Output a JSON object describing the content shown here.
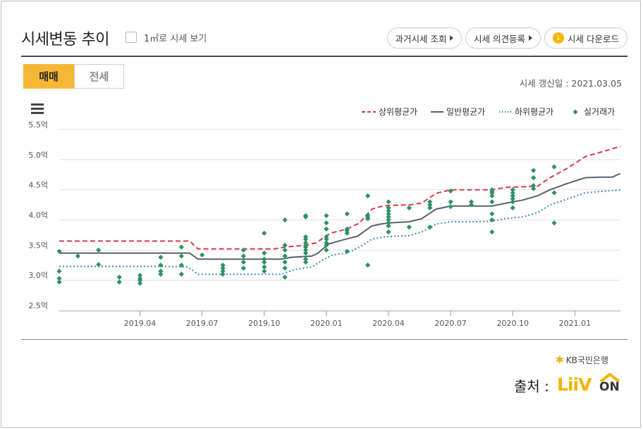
{
  "header": {
    "title": "시세변동 추이",
    "area_toggle_label": "1㎡로 시세 보기",
    "buttons": [
      "과거시세 조회",
      "시세 의견등록",
      "시세 다운로드"
    ]
  },
  "tabs": [
    "매매",
    "전세"
  ],
  "active_tab": "매매",
  "update_date": "시세 갱신일 : 2021.03.05",
  "footer": {
    "bank": "KB국민은행",
    "source_label": "출처 :",
    "logo_text": "LiiV ON"
  },
  "colors": {
    "upper": "#d93a49",
    "general": "#58616b",
    "lower": "#3c86c6",
    "actual": "#2e9163",
    "tab_active": "#f4b735"
  },
  "chart_data": {
    "type": "line",
    "y_unit": "억",
    "ylim": [
      2.5,
      5.5
    ],
    "y_ticks": [
      2.5,
      3.0,
      3.5,
      4.0,
      4.5,
      5.0,
      5.5
    ],
    "y_tick_labels": [
      "2.5억",
      "3.0억",
      "3.5억",
      "4.0억",
      "4.5억",
      "5.0억",
      "5.5억"
    ],
    "x_tick_labels": [
      "2019.04",
      "2019.07",
      "2019.10",
      "2020.01",
      "2020.04",
      "2020.07",
      "2020.10",
      "2021.01"
    ],
    "x_tick_months": [
      3,
      6,
      9,
      12,
      15,
      18,
      21,
      24
    ],
    "x_range_months": [
      -0.9,
      26.2
    ],
    "grid": true,
    "legend_position": "top-right",
    "series": [
      {
        "name": "상위평균가",
        "style": "dashed",
        "color": "#d93a49",
        "points": [
          [
            -0.9,
            3.65
          ],
          [
            1.0,
            3.65
          ],
          [
            1.8,
            3.65
          ],
          [
            3.0,
            3.65
          ],
          [
            4.2,
            3.65
          ],
          [
            5.4,
            3.65
          ],
          [
            5.8,
            3.52
          ],
          [
            7.0,
            3.52
          ],
          [
            8.0,
            3.52
          ],
          [
            9.0,
            3.52
          ],
          [
            9.5,
            3.52
          ],
          [
            10.0,
            3.55
          ],
          [
            11.0,
            3.58
          ],
          [
            11.5,
            3.62
          ],
          [
            12.2,
            3.78
          ],
          [
            13.0,
            3.85
          ],
          [
            13.6,
            3.95
          ],
          [
            14.2,
            4.18
          ],
          [
            14.6,
            4.22
          ],
          [
            15.0,
            4.24
          ],
          [
            16.0,
            4.25
          ],
          [
            16.6,
            4.28
          ],
          [
            17.3,
            4.44
          ],
          [
            18.0,
            4.5
          ],
          [
            19.0,
            4.5
          ],
          [
            20.0,
            4.5
          ],
          [
            20.7,
            4.54
          ],
          [
            21.5,
            4.55
          ],
          [
            22.2,
            4.56
          ],
          [
            22.8,
            4.7
          ],
          [
            23.6,
            4.85
          ],
          [
            24.5,
            5.05
          ],
          [
            25.2,
            5.12
          ],
          [
            26.2,
            5.22
          ]
        ]
      },
      {
        "name": "일반평균가",
        "style": "solid",
        "color": "#58616b",
        "points": [
          [
            -0.9,
            3.45
          ],
          [
            1.0,
            3.45
          ],
          [
            2.0,
            3.45
          ],
          [
            4.2,
            3.45
          ],
          [
            5.4,
            3.45
          ],
          [
            5.8,
            3.35
          ],
          [
            7.0,
            3.35
          ],
          [
            8.0,
            3.35
          ],
          [
            9.0,
            3.35
          ],
          [
            9.8,
            3.35
          ],
          [
            10.3,
            3.38
          ],
          [
            11.3,
            3.4
          ],
          [
            11.6,
            3.45
          ],
          [
            12.1,
            3.6
          ],
          [
            12.8,
            3.67
          ],
          [
            13.5,
            3.73
          ],
          [
            14.2,
            3.9
          ],
          [
            14.6,
            3.93
          ],
          [
            15.0,
            3.95
          ],
          [
            16.0,
            3.97
          ],
          [
            16.6,
            4.02
          ],
          [
            17.3,
            4.18
          ],
          [
            18.0,
            4.23
          ],
          [
            19.0,
            4.23
          ],
          [
            20.0,
            4.23
          ],
          [
            20.7,
            4.28
          ],
          [
            21.5,
            4.33
          ],
          [
            22.2,
            4.4
          ],
          [
            22.8,
            4.5
          ],
          [
            23.6,
            4.6
          ],
          [
            24.5,
            4.7
          ],
          [
            25.2,
            4.71
          ],
          [
            25.8,
            4.71
          ],
          [
            26.2,
            4.77
          ]
        ]
      },
      {
        "name": "하위평균가",
        "style": "dotted",
        "color": "#3c86c6",
        "points": [
          [
            -0.9,
            3.23
          ],
          [
            1.0,
            3.23
          ],
          [
            2.0,
            3.23
          ],
          [
            4.2,
            3.23
          ],
          [
            5.3,
            3.22
          ],
          [
            5.8,
            3.1
          ],
          [
            7.0,
            3.1
          ],
          [
            8.0,
            3.1
          ],
          [
            9.0,
            3.1
          ],
          [
            9.8,
            3.1
          ],
          [
            10.5,
            3.18
          ],
          [
            11.3,
            3.22
          ],
          [
            11.8,
            3.33
          ],
          [
            12.3,
            3.42
          ],
          [
            13.0,
            3.45
          ],
          [
            13.6,
            3.55
          ],
          [
            14.2,
            3.68
          ],
          [
            14.8,
            3.72
          ],
          [
            15.3,
            3.73
          ],
          [
            16.0,
            3.74
          ],
          [
            16.6,
            3.8
          ],
          [
            17.3,
            3.93
          ],
          [
            18.0,
            3.97
          ],
          [
            19.0,
            3.97
          ],
          [
            20.0,
            3.98
          ],
          [
            20.6,
            4.02
          ],
          [
            21.5,
            4.05
          ],
          [
            22.2,
            4.12
          ],
          [
            22.8,
            4.25
          ],
          [
            23.5,
            4.33
          ],
          [
            24.5,
            4.45
          ],
          [
            25.2,
            4.47
          ],
          [
            26.2,
            4.5
          ]
        ]
      },
      {
        "name": "실거래가",
        "style": "markers",
        "color": "#2e9163",
        "points": [
          [
            -0.9,
            3.15
          ],
          [
            -0.9,
            3.03
          ],
          [
            -0.9,
            2.97
          ],
          [
            -0.9,
            3.48
          ],
          [
            0.0,
            3.4
          ],
          [
            1.0,
            3.5
          ],
          [
            1.0,
            3.26
          ],
          [
            2.0,
            3.05
          ],
          [
            2.0,
            2.97
          ],
          [
            3.0,
            3.08
          ],
          [
            3.0,
            3.03
          ],
          [
            3.0,
            3.0
          ],
          [
            3.0,
            2.95
          ],
          [
            4.0,
            3.38
          ],
          [
            4.0,
            3.25
          ],
          [
            4.0,
            3.15
          ],
          [
            4.0,
            3.1
          ],
          [
            5.0,
            3.55
          ],
          [
            5.0,
            3.4
          ],
          [
            5.0,
            3.25
          ],
          [
            5.0,
            3.1
          ],
          [
            6.0,
            3.42
          ],
          [
            7.0,
            3.25
          ],
          [
            7.0,
            3.2
          ],
          [
            7.0,
            3.15
          ],
          [
            7.0,
            3.1
          ],
          [
            8.0,
            3.5
          ],
          [
            8.0,
            3.4
          ],
          [
            8.0,
            3.3
          ],
          [
            8.0,
            3.2
          ],
          [
            9.0,
            3.78
          ],
          [
            9.0,
            3.45
          ],
          [
            9.0,
            3.35
          ],
          [
            9.0,
            3.3
          ],
          [
            9.0,
            3.22
          ],
          [
            9.0,
            3.15
          ],
          [
            10.0,
            4.0
          ],
          [
            10.0,
            3.58
          ],
          [
            10.0,
            3.5
          ],
          [
            10.0,
            3.4
          ],
          [
            10.0,
            3.3
          ],
          [
            10.0,
            3.2
          ],
          [
            10.0,
            3.05
          ],
          [
            11.0,
            4.07
          ],
          [
            11.0,
            4.05
          ],
          [
            11.0,
            3.72
          ],
          [
            11.0,
            3.68
          ],
          [
            11.0,
            3.62
          ],
          [
            11.0,
            3.58
          ],
          [
            11.0,
            3.55
          ],
          [
            11.0,
            3.5
          ],
          [
            11.0,
            3.45
          ],
          [
            11.0,
            3.35
          ],
          [
            11.0,
            3.3
          ],
          [
            12.0,
            4.07
          ],
          [
            12.0,
            3.95
          ],
          [
            12.0,
            3.85
          ],
          [
            12.0,
            3.72
          ],
          [
            12.0,
            3.68
          ],
          [
            12.0,
            3.62
          ],
          [
            12.0,
            3.58
          ],
          [
            12.0,
            3.5
          ],
          [
            13.0,
            4.1
          ],
          [
            13.0,
            3.85
          ],
          [
            13.0,
            3.82
          ],
          [
            13.0,
            3.78
          ],
          [
            13.0,
            3.48
          ],
          [
            14.0,
            4.4
          ],
          [
            14.0,
            4.08
          ],
          [
            14.0,
            4.05
          ],
          [
            14.0,
            4.02
          ],
          [
            14.0,
            3.25
          ],
          [
            15.0,
            4.3
          ],
          [
            15.0,
            4.2
          ],
          [
            15.0,
            4.15
          ],
          [
            15.0,
            4.1
          ],
          [
            15.0,
            4.05
          ],
          [
            15.0,
            4.0
          ],
          [
            15.0,
            3.95
          ],
          [
            15.0,
            3.9
          ],
          [
            15.0,
            3.8
          ],
          [
            16.0,
            4.2
          ],
          [
            16.0,
            3.88
          ],
          [
            17.0,
            4.3
          ],
          [
            17.0,
            4.25
          ],
          [
            17.0,
            4.2
          ],
          [
            17.0,
            3.88
          ],
          [
            18.0,
            4.48
          ],
          [
            18.0,
            4.3
          ],
          [
            18.0,
            4.22
          ],
          [
            19.0,
            4.3
          ],
          [
            19.0,
            4.25
          ],
          [
            20.0,
            4.5
          ],
          [
            20.0,
            4.47
          ],
          [
            20.0,
            4.45
          ],
          [
            20.0,
            4.4
          ],
          [
            20.0,
            4.3
          ],
          [
            20.0,
            4.1
          ],
          [
            20.0,
            4.0
          ],
          [
            20.0,
            3.8
          ],
          [
            21.0,
            4.5
          ],
          [
            21.0,
            4.45
          ],
          [
            21.0,
            4.4
          ],
          [
            21.0,
            4.35
          ],
          [
            21.0,
            4.3
          ],
          [
            21.0,
            4.2
          ],
          [
            22.0,
            4.82
          ],
          [
            22.0,
            4.7
          ],
          [
            22.0,
            4.57
          ],
          [
            22.0,
            4.52
          ],
          [
            23.0,
            4.88
          ],
          [
            23.0,
            4.45
          ],
          [
            23.0,
            3.95
          ]
        ]
      }
    ]
  }
}
